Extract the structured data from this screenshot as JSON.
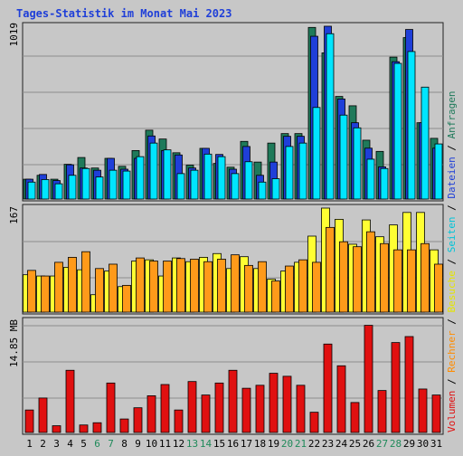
{
  "chart_data": {
    "type": "bar",
    "title": "Tages-Statistik im Monat Mai 2023",
    "days": [
      "1",
      "2",
      "3",
      "4",
      "5",
      "6",
      "7",
      "8",
      "9",
      "10",
      "11",
      "12",
      "13",
      "14",
      "15",
      "16",
      "17",
      "18",
      "19",
      "20",
      "21",
      "22",
      "23",
      "24",
      "25",
      "26",
      "27",
      "28",
      "29",
      "30",
      "31"
    ],
    "weekend_days": [
      "6",
      "7",
      "13",
      "14",
      "20",
      "21",
      "27",
      "28"
    ],
    "panels": {
      "top": {
        "max_label": "1019",
        "ylim": [
          0,
          1019
        ],
        "series": [
          {
            "name": "Anfragen",
            "color": "#1f7a5a",
            "values": [
              117,
              140,
              117,
              205,
              245,
              183,
              240,
              193,
              286,
              406,
              354,
              273,
              200,
              299,
              210,
              188,
              340,
              218,
              330,
              386,
              386,
              1012,
              862,
              605,
              550,
              347,
              281,
              837,
              952,
              450,
              358
            ]
          },
          {
            "name": "Dateien",
            "color": "#1f3fd8",
            "values": [
              117,
              145,
              109,
              202,
              183,
              170,
              240,
              176,
              240,
              372,
              286,
              260,
              183,
              299,
              263,
              176,
              310,
              140,
              218,
              370,
              370,
              960,
              1019,
              590,
              450,
              300,
              190,
              810,
              1000,
              450,
              300
            ]
          },
          {
            "name": "Seiten",
            "color": "#00e5ff",
            "values": [
              100,
              115,
              90,
              140,
              180,
              130,
              170,
              165,
              250,
              330,
              290,
              150,
              170,
              265,
              250,
              150,
              220,
              100,
              120,
              310,
              330,
              540,
              975,
              495,
              420,
              235,
              180,
              800,
              870,
              660,
              325
            ]
          }
        ]
      },
      "middle": {
        "max_label": "167",
        "ylim": [
          0,
          167
        ],
        "series": [
          {
            "name": "Besuche",
            "color": "#ffff33",
            "values": [
              60,
              58,
              58,
              72,
              68,
              28,
              66,
              41,
              82,
              84,
              58,
              87,
              81,
              88,
              94,
              70,
              89,
              70,
              53,
              66,
              80,
              122,
              167,
              149,
              109,
              148,
              121,
              140,
              160,
              160,
              100
            ]
          },
          {
            "name": "Rechner",
            "color": "#ff9a1a",
            "values": [
              67,
              58,
              80,
              88,
              97,
              70,
              77,
              43,
              87,
              82,
              82,
              86,
              85,
              81,
              85,
              92,
              75,
              81,
              50,
              74,
              84,
              80,
              136,
              113,
              105,
              129,
              110,
              100,
              100,
              110,
              77
            ]
          }
        ]
      },
      "bottom": {
        "max_label": "14.85 MB",
        "ylim": [
          0,
          14.85
        ],
        "series": [
          {
            "name": "Volumen",
            "color": "#e01010",
            "values": [
              3.0,
              4.6,
              0.9,
              8.3,
              1.0,
              1.3,
              6.6,
              1.8,
              3.3,
              4.9,
              6.4,
              3.0,
              6.8,
              5.0,
              6.6,
              8.3,
              5.9,
              6.3,
              7.9,
              7.5,
              6.3,
              2.7,
              11.8,
              8.9,
              4.0,
              14.3,
              5.6,
              12.0,
              12.8,
              5.8,
              5.0
            ]
          }
        ]
      }
    },
    "right_legend": [
      {
        "label": "Volumen",
        "color": "#e01010"
      },
      {
        "label": "Rechner",
        "color": "#ff8c00"
      },
      {
        "label": "Besuche",
        "color": "#e5e500"
      },
      {
        "label": "Seiten",
        "color": "#00c4d8"
      },
      {
        "label": "Dateien",
        "color": "#1f3fd8"
      },
      {
        "label": "Anfragen",
        "color": "#1f7a5a"
      }
    ],
    "legend_separator": " / ",
    "colors": {
      "background": "#c7c7c7",
      "panel": "#c7c7c7",
      "title": "#1f3fd8",
      "weekend_label": "#1f8a5a",
      "grid": "#8c8c8c"
    }
  }
}
